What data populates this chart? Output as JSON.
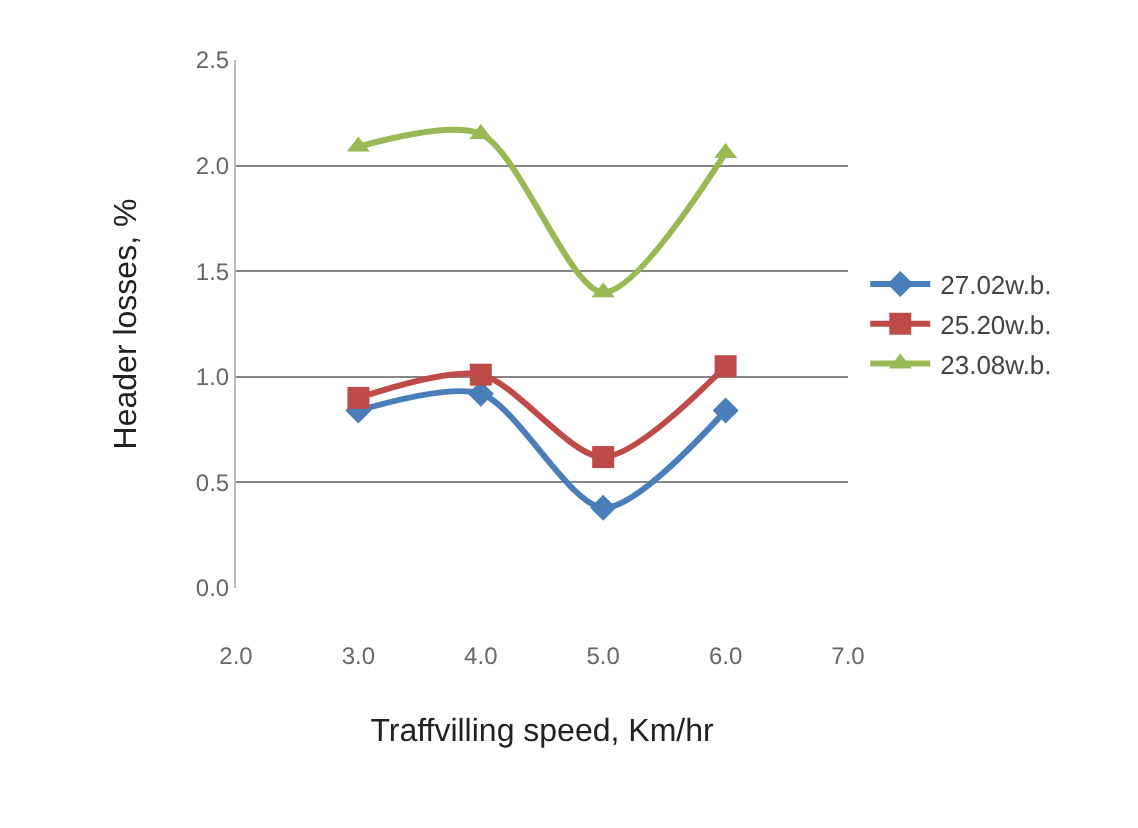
{
  "chart_data": {
    "type": "line",
    "xlabel": "Traffvilling speed, Km/hr",
    "ylabel": "Header losses, %",
    "x": [
      3.0,
      4.0,
      5.0,
      6.0
    ],
    "series": [
      {
        "name": "27.02w.b.",
        "color": "#4a7ebb",
        "marker": "diamond",
        "values": [
          0.84,
          0.92,
          0.38,
          0.84
        ]
      },
      {
        "name": "25.20w.b.",
        "color": "#be4b48",
        "marker": "square",
        "values": [
          0.9,
          1.01,
          0.62,
          1.05
        ]
      },
      {
        "name": "23.08w.b.",
        "color": "#98b954",
        "marker": "triangle",
        "values": [
          2.09,
          2.15,
          1.4,
          2.06
        ]
      }
    ],
    "xlim": [
      2.0,
      7.0
    ],
    "xticks": [
      {
        "value": 2,
        "label": "2.0"
      },
      {
        "value": 3,
        "label": "3.0"
      },
      {
        "value": 4,
        "label": "4.0"
      },
      {
        "value": 5,
        "label": "5.0"
      },
      {
        "value": 6,
        "label": "6.0"
      },
      {
        "value": 7,
        "label": "7.0"
      }
    ],
    "ylim": [
      0.0,
      2.5
    ],
    "yticks": [
      {
        "value": 0,
        "label": "0.0"
      },
      {
        "value": 0.5,
        "label": "0.5"
      },
      {
        "value": 1,
        "label": "1.0"
      },
      {
        "value": 1.5,
        "label": "1.5"
      },
      {
        "value": 2,
        "label": "2.0"
      },
      {
        "value": 2.5,
        "label": "2.5"
      }
    ],
    "grid": "y",
    "legend": "right",
    "line_style": "solid"
  }
}
